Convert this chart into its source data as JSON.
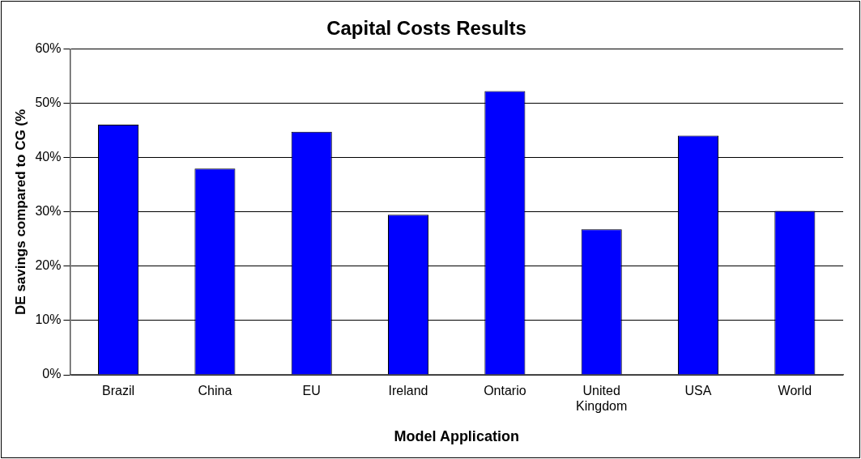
{
  "chart_data": {
    "type": "bar",
    "title": "Capital Costs Results",
    "xlabel": "Model Application",
    "ylabel": "DE savings compared to CG (%",
    "categories": [
      "Brazil",
      "China",
      "EU",
      "Ireland",
      "Ontario",
      "United Kingdom",
      "USA",
      "World"
    ],
    "values": [
      46.1,
      38.0,
      44.8,
      29.5,
      52.3,
      26.8,
      44.1,
      30.2
    ],
    "color": "#0000ff",
    "ylim": [
      0,
      60
    ],
    "yticks": [
      {
        "value": 0,
        "label": "0%"
      },
      {
        "value": 10,
        "label": "10%"
      },
      {
        "value": 20,
        "label": "20%"
      },
      {
        "value": 30,
        "label": "30%"
      },
      {
        "value": 40,
        "label": "40%"
      },
      {
        "value": 50,
        "label": "50%"
      },
      {
        "value": 60,
        "label": "60%"
      }
    ],
    "grid": "y",
    "legend": false
  }
}
